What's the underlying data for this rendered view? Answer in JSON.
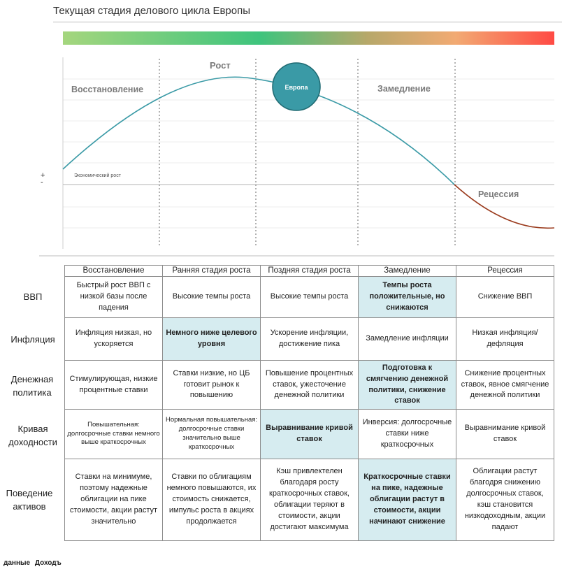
{
  "title": "Текущая стадия делового цикла Европы",
  "chart": {
    "phase_labels": [
      "Восстановление",
      "Рост",
      "Замедление",
      "Рецессия"
    ],
    "marker_label": "Европа",
    "axis_label": "Экономический рост",
    "plus": "+",
    "minus": "-"
  },
  "columns": [
    "Восстановление",
    "Ранняя стадия роста",
    "Поздняя стадия роста",
    "Замедление",
    "Рецессия"
  ],
  "rows": [
    {
      "label": "ВВП",
      "cells": [
        "Быстрый рост ВВП с низкой базы после падения",
        "Высокие темпы роста",
        "Высокие темпы роста",
        "Темпы роста положительные, но снижаются",
        "Снижение ВВП"
      ]
    },
    {
      "label": "Инфляция",
      "cells": [
        "Инфляция низкая, но ускоряется",
        "Немного ниже целевого уровня",
        "Ускорение инфляции, достижение пика",
        "Замедление инфляции",
        "Низкая инфляция/дефляция"
      ]
    },
    {
      "label": "Денежная политика",
      "cells": [
        "Стимулирующая, низкие процентные ставки",
        "Ставки низкие, но ЦБ готовит рынок к повышению",
        "Повышение процентных ставок, ужесточение денежной политики",
        "Подготовка к смягчению денежной политики, снижение ставок",
        "Снижение процентных ставок, явное смягчение денежной политики"
      ]
    },
    {
      "label": "Кривая доходности",
      "cells": [
        "Повышательная: долгосрочные ставки немного выше краткосрочных",
        "Нормальная повышательная: долгосрочные ставки значительно выше краткосрочных",
        "Выравнивание кривой ставок",
        "Инверсия: долгосрочные ставки ниже краткосрочных",
        "Выравнимание кривой ставок"
      ]
    },
    {
      "label": "Поведение активов",
      "cells": [
        "Ставки на минимуме, поэтому надежные облигации на пике стоимости, акции растут значительно",
        "Ставки по облигациям немного повышаются, их стоимость снижается, импульс роста в акциях продолжается",
        "Кэш привлектелен благодаря росту краткосрочных ставок, облигации теряют в стоимости, акции достигают максимума",
        "Краткосрочные ставки на пике, надежные облигации растут в стоимости, акции начинают снижение",
        "Облигации растут благодря снижению долгосрочных ставок, кэш становится низкодоходным, акции падают"
      ]
    }
  ],
  "footer": [
    "данные",
    "Доходъ"
  ],
  "colors": {
    "curve_growth": "#3a9aa6",
    "curve_recession": "#9a3a1c",
    "marker_fill": "#3a9aa6",
    "highlight": "#d6ecf0",
    "phase_text": "#7a7a7a"
  }
}
